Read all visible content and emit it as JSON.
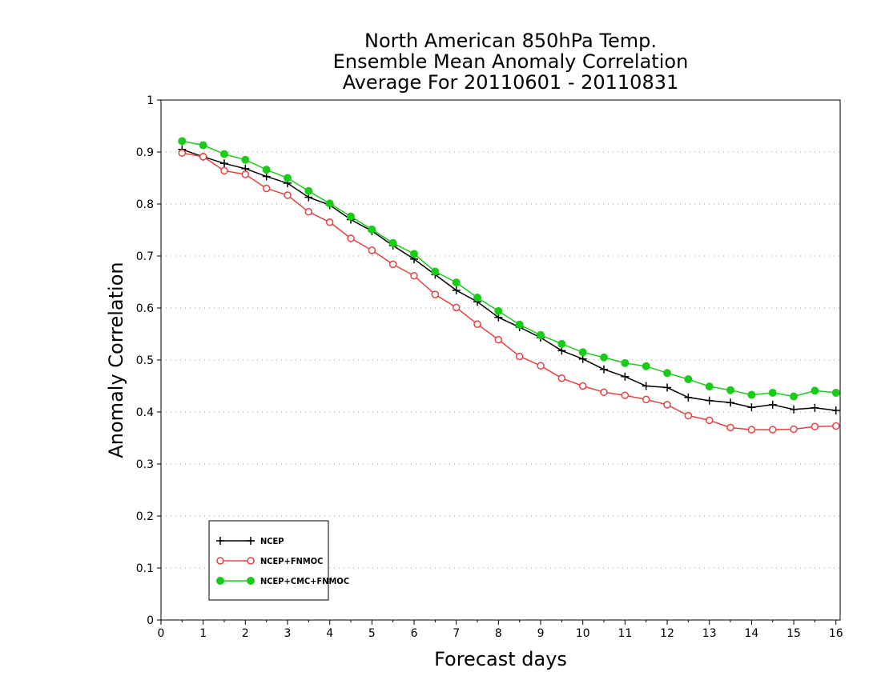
{
  "chart_data": {
    "type": "line",
    "title": [
      "North American 850hPa Temp.",
      "Ensemble Mean Anomaly Correlation",
      "Average For 20110601 - 20110831"
    ],
    "xlabel": "Forecast days",
    "ylabel": "Anomaly Correlation",
    "xlim": [
      0,
      16.1
    ],
    "ylim": [
      0,
      1
    ],
    "xticks": [
      "0",
      "1",
      "2",
      "3",
      "4",
      "5",
      "6",
      "7",
      "8",
      "9",
      "10",
      "11",
      "12",
      "13",
      "14",
      "15",
      "16"
    ],
    "yticks": [
      "0",
      "0.1",
      "0.2",
      "0.3",
      "0.4",
      "0.5",
      "0.6",
      "0.7",
      "0.8",
      "0.9",
      "1"
    ],
    "grid": "horizontal-dotted",
    "legend_position": "bottom-left",
    "x": [
      0.5,
      1,
      1.5,
      2,
      2.5,
      3,
      3.5,
      4,
      4.5,
      5,
      5.5,
      6,
      6.5,
      7,
      7.5,
      8,
      8.5,
      9,
      9.5,
      10,
      10.5,
      11,
      11.5,
      12,
      12.5,
      13,
      13.5,
      14,
      14.5,
      15,
      15.5,
      16
    ],
    "series": [
      {
        "name": "NCEP",
        "color": "#000000",
        "marker": "plus",
        "values": [
          0.905,
          0.891,
          0.878,
          0.868,
          0.853,
          0.84,
          0.813,
          0.798,
          0.77,
          0.748,
          0.72,
          0.694,
          0.664,
          0.634,
          0.612,
          0.582,
          0.563,
          0.543,
          0.518,
          0.502,
          0.482,
          0.468,
          0.45,
          0.447,
          0.428,
          0.422,
          0.418,
          0.409,
          0.414,
          0.405,
          0.408,
          0.403
        ]
      },
      {
        "name": "NCEP+FNMOC",
        "color": "#e84040",
        "marker": "open-circle",
        "values": [
          0.898,
          0.891,
          0.864,
          0.857,
          0.83,
          0.817,
          0.785,
          0.765,
          0.734,
          0.711,
          0.684,
          0.662,
          0.626,
          0.601,
          0.569,
          0.539,
          0.507,
          0.489,
          0.465,
          0.45,
          0.438,
          0.432,
          0.424,
          0.414,
          0.393,
          0.384,
          0.37,
          0.366,
          0.366,
          0.367,
          0.372,
          0.373
        ]
      },
      {
        "name": "NCEP+CMC+FNMOC",
        "color": "#18cc18",
        "marker": "filled-circle",
        "values": [
          0.921,
          0.913,
          0.896,
          0.885,
          0.866,
          0.85,
          0.825,
          0.801,
          0.776,
          0.751,
          0.725,
          0.704,
          0.67,
          0.649,
          0.62,
          0.594,
          0.568,
          0.548,
          0.531,
          0.515,
          0.505,
          0.494,
          0.488,
          0.475,
          0.463,
          0.449,
          0.442,
          0.433,
          0.437,
          0.43,
          0.441,
          0.437
        ]
      }
    ]
  }
}
